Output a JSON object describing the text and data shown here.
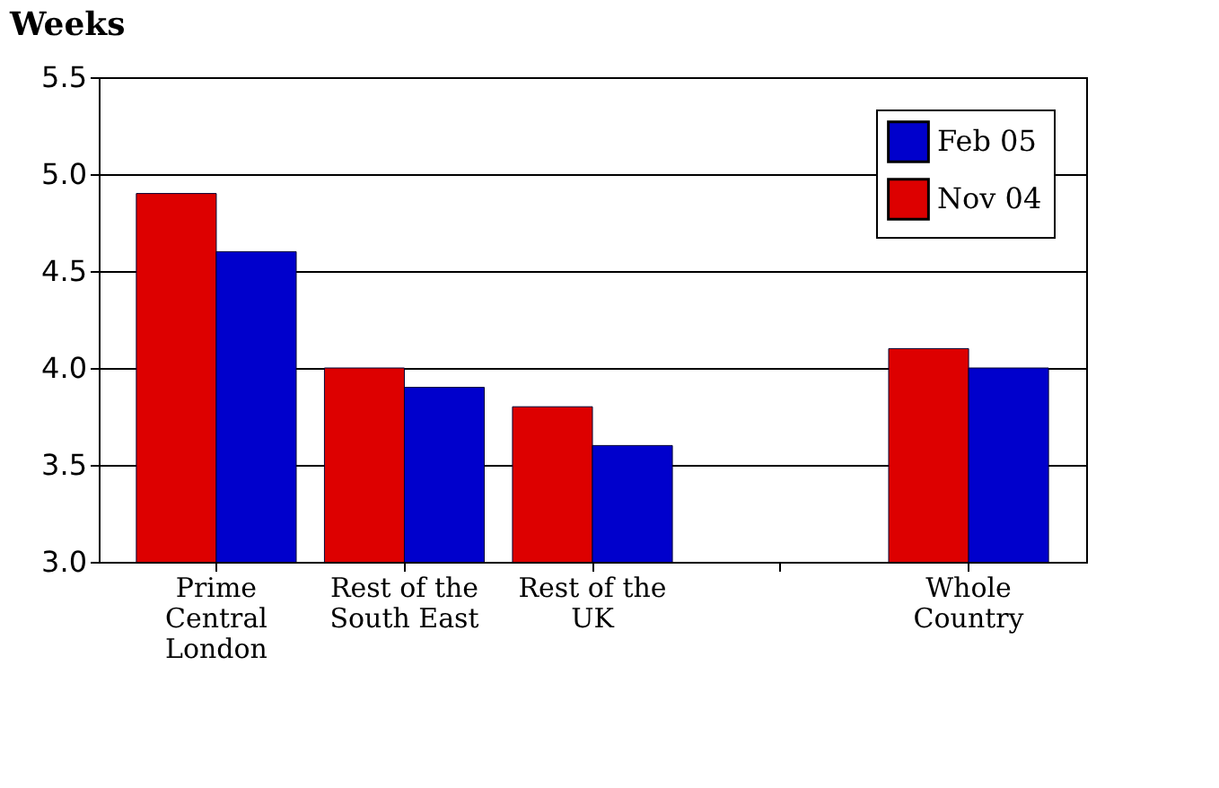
{
  "chart_data": {
    "type": "bar",
    "ylabel": "Weeks",
    "categories": [
      "Prime Central London",
      "Rest of the South East",
      "Rest of the UK",
      null,
      "Whole Country"
    ],
    "series": [
      {
        "name": "Nov 04",
        "color": "#dd0000",
        "values": [
          4.9,
          4.0,
          3.8,
          null,
          4.1
        ]
      },
      {
        "name": "Feb 05",
        "color": "#0000cc",
        "values": [
          4.6,
          3.9,
          3.6,
          null,
          4.0
        ]
      }
    ],
    "ylim": [
      3.0,
      5.5
    ],
    "yticks": [
      {
        "value": 3,
        "label": "3.0"
      },
      3.5,
      {
        "value": 4,
        "label": "4.0"
      },
      4.5,
      {
        "value": 5,
        "label": "5.0"
      },
      5.5
    ],
    "grid": "y",
    "legend": "top right"
  }
}
